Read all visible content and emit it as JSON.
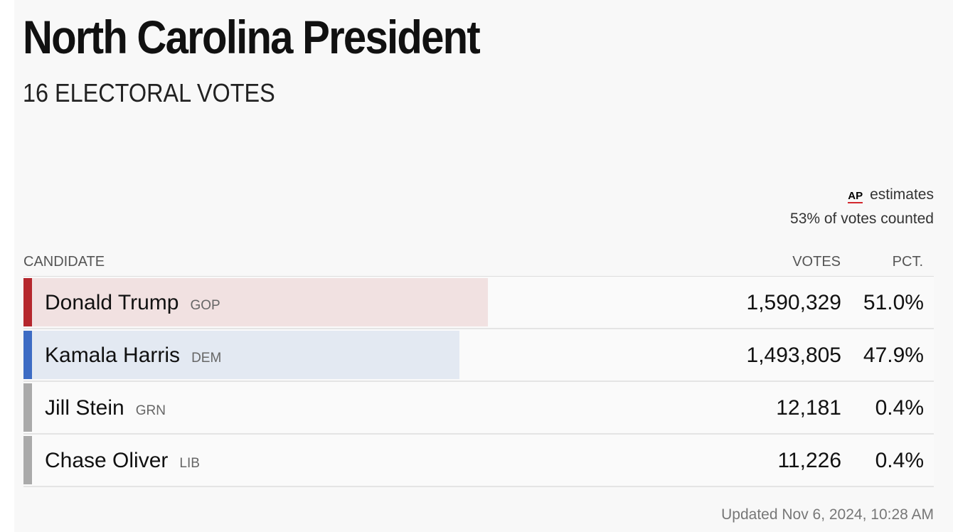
{
  "header": {
    "title": "North Carolina President",
    "subtitle": "16 ELECTORAL VOTES"
  },
  "status": {
    "source": "AP",
    "source_note": "estimates",
    "counted": "53% of votes counted"
  },
  "table": {
    "columns": [
      "CANDIDATE",
      "VOTES",
      "PCT."
    ],
    "rows": [
      {
        "name": "Donald Trump",
        "party": "GOP",
        "votes": "1,590,329",
        "pct": {
          "value": 51.0,
          "label": "51.0%"
        },
        "color": "#b5272d",
        "tint": "#f1e1e1"
      },
      {
        "name": "Kamala Harris",
        "party": "DEM",
        "votes": "1,493,805",
        "pct": {
          "value": 47.9,
          "label": "47.9%"
        },
        "color": "#3d6cc4",
        "tint": "#e3e9f2"
      },
      {
        "name": "Jill Stein",
        "party": "GRN",
        "votes": "12,181",
        "pct": {
          "value": 0.4,
          "label": "0.4%"
        },
        "color": "#aaaaaa",
        "tint": "#ececec"
      },
      {
        "name": "Chase Oliver",
        "party": "LIB",
        "votes": "11,226",
        "pct": {
          "value": 0.4,
          "label": "0.4%"
        },
        "color": "#aaaaaa",
        "tint": "#ececec"
      }
    ]
  },
  "footer": {
    "updated": "Updated Nov 6, 2024, 10:28 AM"
  }
}
